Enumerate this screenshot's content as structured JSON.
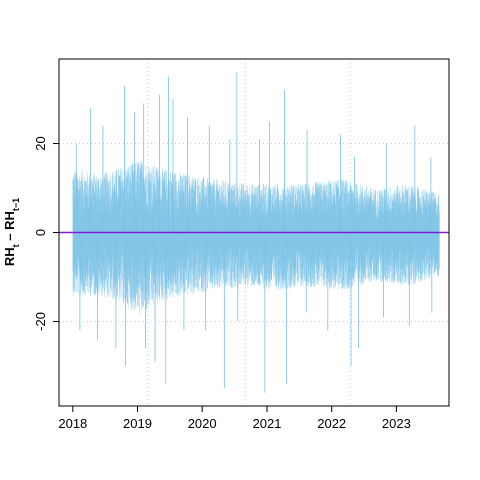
{
  "chart_data": {
    "type": "line",
    "title": "",
    "xlabel": "",
    "ylabel": "RH",
    "ylabel_sub_t": "t",
    "ylabel_minus": " – RH",
    "ylabel_sub_t1": "t−1",
    "x_range": [
      "2017-10-15",
      "2023-10-25"
    ],
    "ylim": [
      -39,
      39
    ],
    "x_ticks": [
      {
        "date": "2018-01-01",
        "label": "2018"
      },
      {
        "date": "2019-01-01",
        "label": "2019"
      },
      {
        "date": "2020-01-01",
        "label": "2020"
      },
      {
        "date": "2021-01-01",
        "label": "2021"
      },
      {
        "date": "2022-01-01",
        "label": "2022"
      },
      {
        "date": "2023-01-01",
        "label": "2023"
      }
    ],
    "y_ticks": [
      {
        "value": -20,
        "label": "-20"
      },
      {
        "value": 0,
        "label": "0"
      },
      {
        "value": 20,
        "label": "20"
      }
    ],
    "vertical_gridlines": [
      "2019-03-01",
      "2020-09-01",
      "2022-04-15"
    ],
    "horizontal_gridlines": [
      -20,
      20
    ],
    "grid": true,
    "reference_line": {
      "y": 0,
      "color": "#7b1fd6"
    },
    "series": [
      {
        "color": "#79c1e6",
        "x_start": "2018-01-01",
        "x_end": "2023-09-01",
        "typical_upper": [
          {
            "x": "2018-01-15",
            "y": 13
          },
          {
            "x": "2018-06-01",
            "y": 12
          },
          {
            "x": "2018-09-01",
            "y": 13
          },
          {
            "x": "2019-01-15",
            "y": 15
          },
          {
            "x": "2019-06-01",
            "y": 13
          },
          {
            "x": "2019-10-01",
            "y": 12
          },
          {
            "x": "2020-03-01",
            "y": 11
          },
          {
            "x": "2020-09-01",
            "y": 10
          },
          {
            "x": "2021-02-01",
            "y": 10
          },
          {
            "x": "2021-08-01",
            "y": 10
          },
          {
            "x": "2022-03-01",
            "y": 11
          },
          {
            "x": "2022-09-01",
            "y": 9
          },
          {
            "x": "2023-03-01",
            "y": 10
          },
          {
            "x": "2023-09-01",
            "y": 8
          }
        ],
        "typical_lower": [
          {
            "x": "2018-01-15",
            "y": -13
          },
          {
            "x": "2018-06-01",
            "y": -13
          },
          {
            "x": "2018-09-01",
            "y": -14
          },
          {
            "x": "2019-01-15",
            "y": -17
          },
          {
            "x": "2019-06-01",
            "y": -14
          },
          {
            "x": "2019-10-01",
            "y": -13
          },
          {
            "x": "2020-03-01",
            "y": -12
          },
          {
            "x": "2020-09-01",
            "y": -11
          },
          {
            "x": "2021-02-01",
            "y": -12
          },
          {
            "x": "2021-08-01",
            "y": -11
          },
          {
            "x": "2022-03-01",
            "y": -12
          },
          {
            "x": "2022-09-01",
            "y": -10
          },
          {
            "x": "2023-03-01",
            "y": -11
          },
          {
            "x": "2023-09-01",
            "y": -9
          }
        ],
        "extremes": [
          {
            "x": "2018-01-20",
            "y": 20
          },
          {
            "x": "2018-04-10",
            "y": 28
          },
          {
            "x": "2018-06-20",
            "y": 24
          },
          {
            "x": "2018-10-20",
            "y": 33
          },
          {
            "x": "2018-12-15",
            "y": 27
          },
          {
            "x": "2019-02-05",
            "y": 29
          },
          {
            "x": "2019-05-05",
            "y": 31
          },
          {
            "x": "2019-06-25",
            "y": 35
          },
          {
            "x": "2019-07-20",
            "y": 30
          },
          {
            "x": "2019-10-10",
            "y": 26
          },
          {
            "x": "2020-02-10",
            "y": 24
          },
          {
            "x": "2020-06-05",
            "y": 21
          },
          {
            "x": "2020-07-15",
            "y": 36
          },
          {
            "x": "2020-11-20",
            "y": 21
          },
          {
            "x": "2021-01-15",
            "y": 25
          },
          {
            "x": "2021-04-10",
            "y": 32
          },
          {
            "x": "2021-08-15",
            "y": 23
          },
          {
            "x": "2022-02-20",
            "y": 22
          },
          {
            "x": "2022-05-10",
            "y": 17
          },
          {
            "x": "2022-11-05",
            "y": 20
          },
          {
            "x": "2023-04-15",
            "y": 24
          },
          {
            "x": "2023-07-15",
            "y": 17
          },
          {
            "x": "2018-02-10",
            "y": -22
          },
          {
            "x": "2018-05-20",
            "y": -24
          },
          {
            "x": "2018-09-01",
            "y": -26
          },
          {
            "x": "2018-10-25",
            "y": -30
          },
          {
            "x": "2019-02-15",
            "y": -26
          },
          {
            "x": "2019-04-10",
            "y": -29
          },
          {
            "x": "2019-06-10",
            "y": -34
          },
          {
            "x": "2019-09-20",
            "y": -22
          },
          {
            "x": "2020-01-20",
            "y": -22
          },
          {
            "x": "2020-05-05",
            "y": -35
          },
          {
            "x": "2020-07-20",
            "y": -20
          },
          {
            "x": "2020-12-20",
            "y": -36
          },
          {
            "x": "2021-04-20",
            "y": -34
          },
          {
            "x": "2021-08-10",
            "y": -18
          },
          {
            "x": "2021-12-10",
            "y": -22
          },
          {
            "x": "2022-04-20",
            "y": -30
          },
          {
            "x": "2022-06-01",
            "y": -26
          },
          {
            "x": "2022-10-20",
            "y": -19
          },
          {
            "x": "2023-03-15",
            "y": -21
          },
          {
            "x": "2023-07-20",
            "y": -18
          }
        ]
      }
    ]
  }
}
